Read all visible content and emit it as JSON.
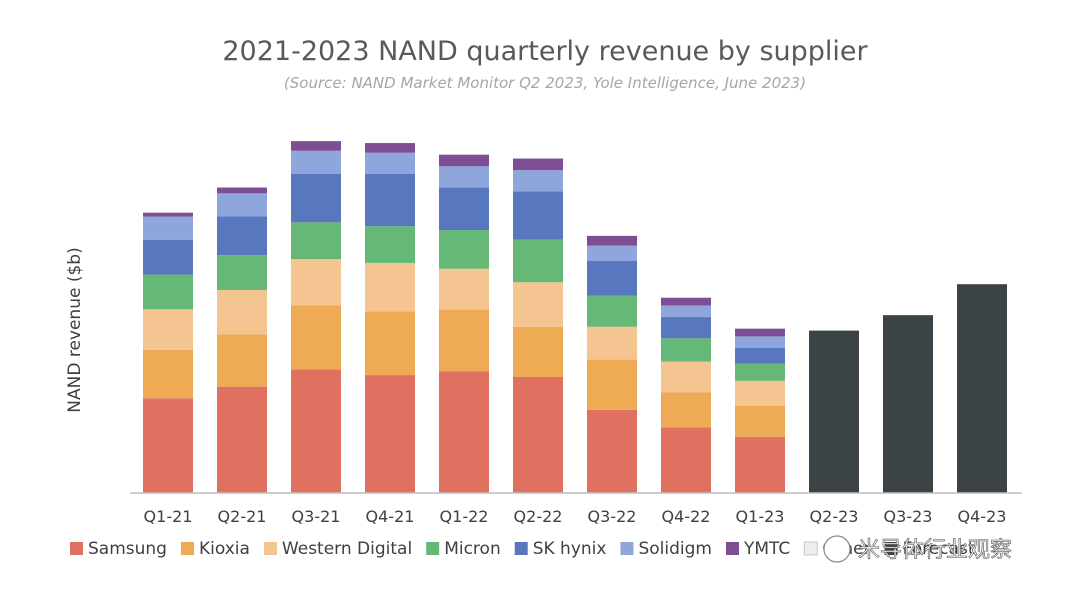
{
  "chart_data": {
    "type": "bar",
    "stacked": true,
    "title": "2021-2023 NAND quarterly revenue by supplier",
    "subtitle": "(Source: NAND Market Monitor Q2 2023, Yole Intelligence, June 2023)",
    "ylabel": "NAND revenue ($b)",
    "xlabel": "",
    "ylim": [
      0,
      18
    ],
    "grid": false,
    "legend_position": "bottom",
    "categories": [
      "Q1-21",
      "Q2-21",
      "Q3-21",
      "Q4-21",
      "Q1-22",
      "Q2-22",
      "Q3-22",
      "Q4-22",
      "Q1-23",
      "Q2-23",
      "Q3-23",
      "Q4-23"
    ],
    "series": [
      {
        "name": "Samsung",
        "color": "#e07060",
        "values": [
          4.9,
          5.5,
          6.4,
          6.1,
          6.3,
          6.0,
          4.3,
          3.4,
          2.9,
          null,
          null,
          null
        ]
      },
      {
        "name": "Kioxia",
        "color": "#eeaa55",
        "values": [
          2.5,
          2.7,
          3.3,
          3.3,
          3.2,
          2.6,
          2.6,
          1.8,
          1.6,
          null,
          null,
          null
        ]
      },
      {
        "name": "Western Digital",
        "color": "#f4c590",
        "values": [
          2.1,
          2.3,
          2.4,
          2.5,
          2.1,
          2.3,
          1.7,
          1.6,
          1.3,
          null,
          null,
          null
        ]
      },
      {
        "name": "Micron",
        "color": "#66b877",
        "values": [
          1.8,
          1.8,
          1.9,
          1.9,
          2.0,
          2.2,
          1.6,
          1.2,
          0.9,
          null,
          null,
          null
        ]
      },
      {
        "name": "SK hynix",
        "color": "#5877be",
        "values": [
          1.8,
          2.0,
          2.5,
          2.7,
          2.2,
          2.5,
          1.8,
          1.1,
          0.8,
          null,
          null,
          null
        ]
      },
      {
        "name": "Solidigm",
        "color": "#8ea6dc",
        "values": [
          1.2,
          1.2,
          1.2,
          1.1,
          1.1,
          1.1,
          0.8,
          0.6,
          0.6,
          null,
          null,
          null
        ]
      },
      {
        "name": "YMTC",
        "color": "#7e4e94",
        "values": [
          0.2,
          0.3,
          0.5,
          0.5,
          0.6,
          0.6,
          0.5,
          0.4,
          0.4,
          null,
          null,
          null
        ]
      },
      {
        "name": "Other",
        "color": "#eeeeee",
        "values": [
          0,
          0,
          0,
          0,
          0,
          0,
          0,
          0,
          0,
          null,
          null,
          null
        ]
      },
      {
        "name": "Forecast",
        "color": "#3b4347",
        "values": [
          null,
          null,
          null,
          null,
          null,
          null,
          null,
          null,
          null,
          8.4,
          9.2,
          10.8
        ]
      }
    ],
    "legend": [
      {
        "name": "Samsung",
        "color": "#e07060"
      },
      {
        "name": "Kioxia",
        "color": "#eeaa55"
      },
      {
        "name": "Western Digital",
        "color": "#f4c590"
      },
      {
        "name": "Micron",
        "color": "#66b877"
      },
      {
        "name": "SK hynix",
        "color": "#5877be"
      },
      {
        "name": "Solidigm",
        "color": "#8ea6dc"
      },
      {
        "name": "YMTC",
        "color": "#7e4e94"
      },
      {
        "name": "Other",
        "color": "#eeeeee"
      },
      {
        "name": "Forecast",
        "color": "#3b4347"
      }
    ]
  },
  "watermark": "米导体行业观察"
}
